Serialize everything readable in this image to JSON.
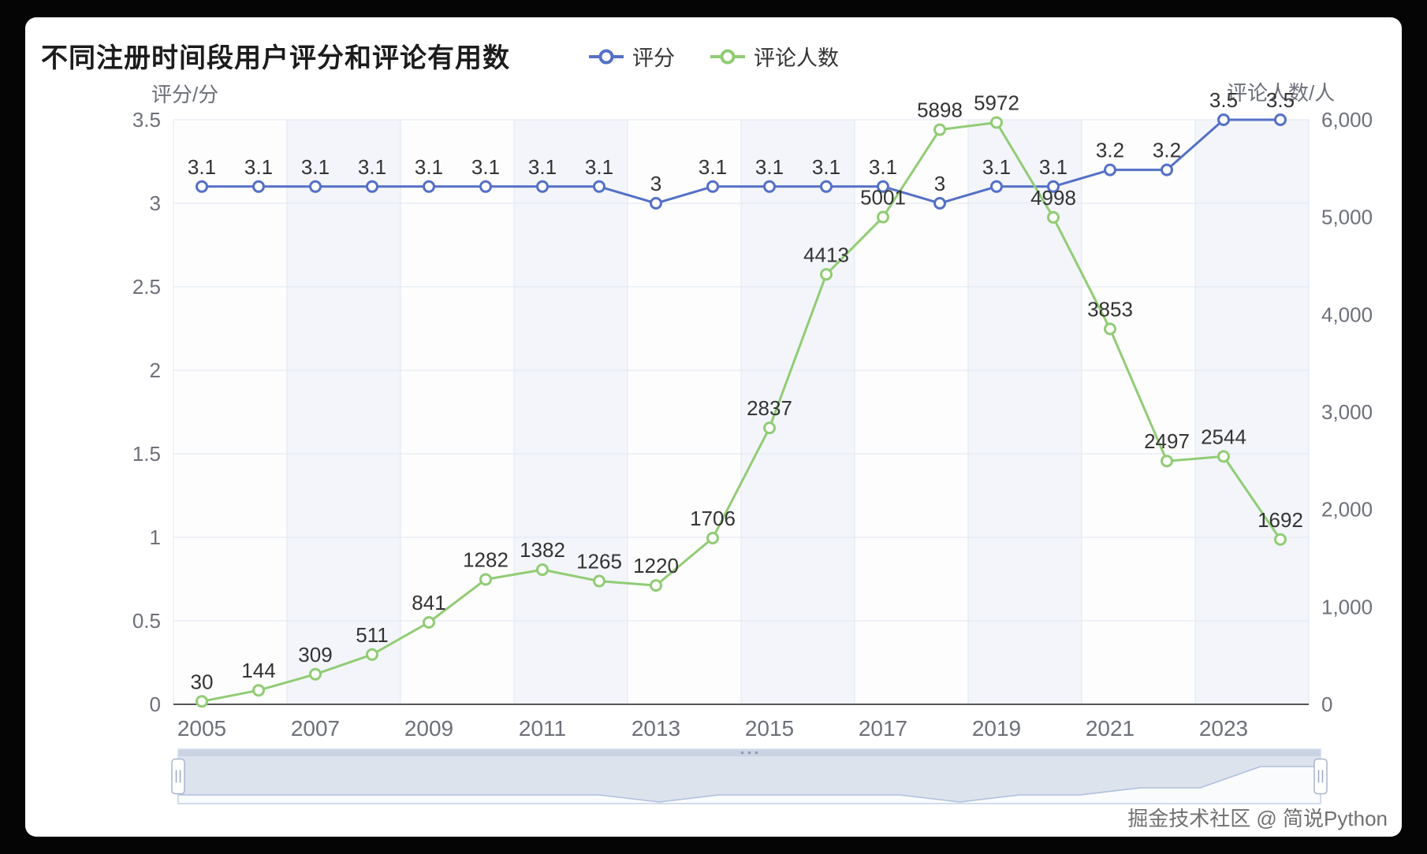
{
  "watermark": "掘金技术社区 @ 简说Python",
  "chart_data": {
    "type": "line",
    "title": "不同注册时间段用户评分和评论有用数",
    "legend_position": "top",
    "grid": true,
    "categories": [
      "2005",
      "2006",
      "2007",
      "2008",
      "2009",
      "2010",
      "2011",
      "2012",
      "2013",
      "2014",
      "2015",
      "2016",
      "2017",
      "2018",
      "2019",
      "2020",
      "2021",
      "2022",
      "2023",
      "2024"
    ],
    "x_axis": {
      "tick_interval": 2,
      "shown_labels": [
        "2005",
        "2007",
        "2009",
        "2011",
        "2013",
        "2015",
        "2017",
        "2019",
        "2021",
        "2023"
      ]
    },
    "left_axis": {
      "name": "评分/分",
      "min": 0,
      "max": 3.5,
      "ticks": [
        "0",
        "0.5",
        "1",
        "1.5",
        "2",
        "2.5",
        "3",
        "3.5"
      ]
    },
    "right_axis": {
      "name": "评论人数/人",
      "min": 0,
      "max": 6000,
      "ticks": [
        "0",
        "1,000",
        "2,000",
        "3,000",
        "4,000",
        "5,000",
        "6,000"
      ]
    },
    "series": [
      {
        "id": "rating",
        "name": "评分",
        "color": "#5470c6",
        "axis": "left",
        "values": [
          3.1,
          3.1,
          3.1,
          3.1,
          3.1,
          3.1,
          3.1,
          3.1,
          3,
          3.1,
          3.1,
          3.1,
          3.1,
          3,
          3.1,
          3.1,
          3.2,
          3.2,
          3.5,
          3.5
        ]
      },
      {
        "id": "review-count",
        "name": "评论人数",
        "color": "#91cc75",
        "axis": "right",
        "values": [
          30,
          144,
          309,
          511,
          841,
          1282,
          1382,
          1265,
          1220,
          1706,
          2837,
          4413,
          5001,
          5898,
          5972,
          4998,
          3853,
          2497,
          2544,
          1692
        ]
      }
    ],
    "colors": {
      "grid_line": "#E0E6F1",
      "axis_label": "#6E7079",
      "label_text": "#333333",
      "x_axis_line": "#555555",
      "band_odd": "rgba(211,219,236,0.28)",
      "band_even": "rgba(250,250,250,0.30)",
      "datazoom_fill": "rgba(167,183,204,0.35)",
      "datazoom_border": "#d2dbee"
    }
  }
}
